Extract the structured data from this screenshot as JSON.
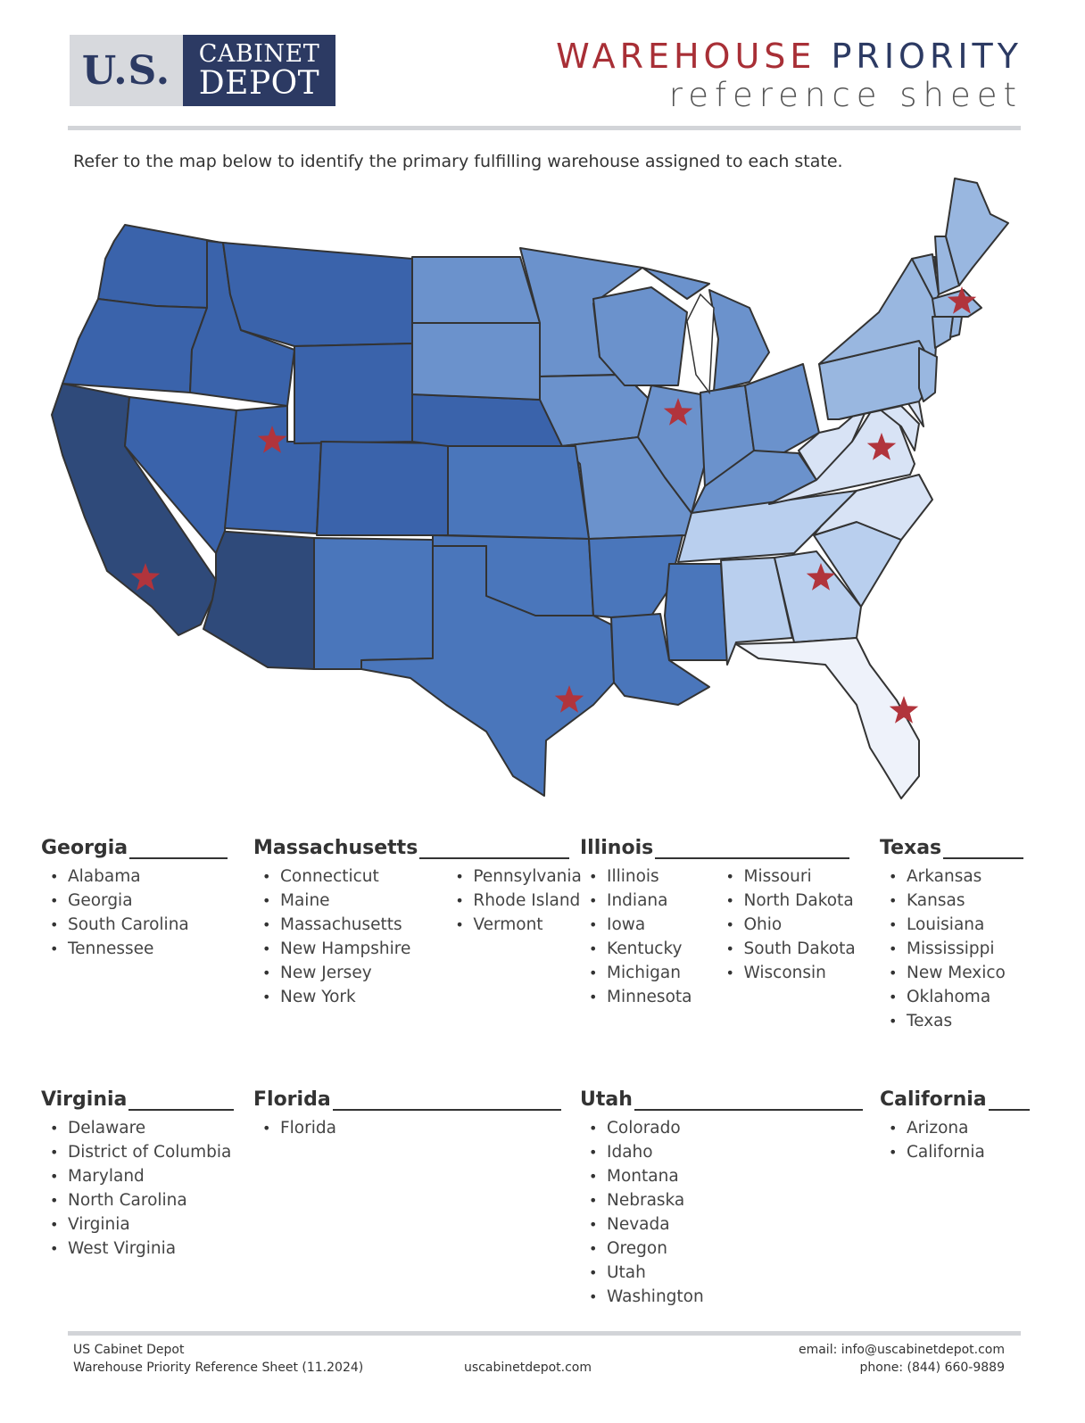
{
  "logo": {
    "us": "U.S.",
    "line1": "CABINET",
    "line2": "DEPOT"
  },
  "title": {
    "word1": "WAREHOUSE",
    "word2": "PRIORITY",
    "subtitle": "reference sheet"
  },
  "intro": "Refer to the map below to identify the primary fulfilling warehouse assigned to each state.",
  "colors": {
    "california": "#2f4a7a",
    "utah": "#3a63ab",
    "texas": "#4a76bb",
    "illinois": "#6b92cc",
    "massachusetts": "#99b7e0",
    "georgia": "#b9cfee",
    "virginia": "#d8e3f5",
    "florida": "#eef2fa",
    "star": "#b1343c"
  },
  "groups": {
    "georgia": {
      "name": "Georgia",
      "cols": [
        [
          "Alabama",
          "Georgia",
          "South Carolina",
          "Tennessee"
        ]
      ]
    },
    "massachusetts": {
      "name": "Massachusetts",
      "cols": [
        [
          "Connecticut",
          "Maine",
          "Massachusetts",
          "New Hampshire",
          "New Jersey",
          "New York"
        ],
        [
          "Pennsylvania",
          "Rhode Island",
          "Vermont"
        ]
      ]
    },
    "illinois": {
      "name": "Illinois",
      "cols": [
        [
          "Illinois",
          "Indiana",
          "Iowa",
          "Kentucky",
          "Michigan",
          "Minnesota"
        ],
        [
          "Missouri",
          "North Dakota",
          "Ohio",
          "South Dakota",
          "Wisconsin"
        ]
      ]
    },
    "texas": {
      "name": "Texas",
      "cols": [
        [
          "Arkansas",
          "Kansas",
          "Louisiana",
          "Mississippi",
          "New Mexico",
          "Oklahoma",
          "Texas"
        ]
      ]
    },
    "virginia": {
      "name": "Virginia",
      "cols": [
        [
          "Delaware",
          "District of Columbia",
          "Maryland",
          "North Carolina",
          "Virginia",
          "West Virginia"
        ]
      ]
    },
    "florida": {
      "name": "Florida",
      "cols": [
        [
          "Florida"
        ]
      ]
    },
    "utah": {
      "name": "Utah",
      "cols": [
        [
          "Colorado",
          "Idaho",
          "Montana",
          "Nebraska",
          "Nevada",
          "Oregon",
          "Utah",
          "Washington"
        ]
      ]
    },
    "california": {
      "name": "California",
      "cols": [
        [
          "Arizona",
          "California"
        ]
      ]
    }
  },
  "footer": {
    "company": "US Cabinet Depot",
    "doc": "Warehouse Priority Reference Sheet (11.2024)",
    "website": "uscabinetdepot.com",
    "email": "email: info@uscabinetdepot.com",
    "phone": "phone: (844) 660-9889"
  }
}
